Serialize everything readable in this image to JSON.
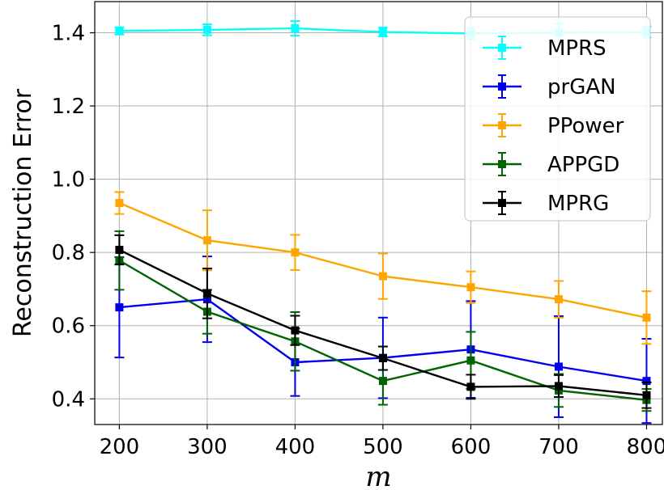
{
  "chart_data": {
    "type": "line",
    "title": "",
    "xlabel": "m",
    "ylabel": "Reconstruction Error",
    "x": [
      200,
      300,
      400,
      500,
      600,
      700,
      800
    ],
    "xlim": [
      172,
      818
    ],
    "ylim": [
      0.33,
      1.485
    ],
    "xticks": [
      "200",
      "300",
      "400",
      "500",
      "600",
      "700",
      "800"
    ],
    "yticks": [
      0.4,
      0.6,
      0.8,
      1.0,
      1.2,
      1.4
    ],
    "ytick_labels": [
      "0.4",
      "0.6",
      "0.8",
      "1.0",
      "1.2",
      "1.4"
    ],
    "grid": true,
    "legend_position": "top-right",
    "series": [
      {
        "name": "MPRS",
        "color": "#00ffff",
        "values": [
          1.405,
          1.408,
          1.412,
          1.402,
          1.398,
          1.4,
          1.402
        ],
        "errors": [
          0.01,
          0.015,
          0.02,
          0.012,
          0.015,
          0.025,
          0.015
        ]
      },
      {
        "name": "prGAN",
        "color": "#0000ee",
        "values": [
          0.65,
          0.672,
          0.5,
          0.512,
          0.535,
          0.488,
          0.449
        ],
        "errors": [
          0.137,
          0.117,
          0.092,
          0.11,
          0.132,
          0.138,
          0.115
        ]
      },
      {
        "name": "PPower",
        "color": "#ffa500",
        "values": [
          0.935,
          0.833,
          0.8,
          0.735,
          0.705,
          0.672,
          0.622
        ],
        "errors": [
          0.03,
          0.082,
          0.048,
          0.062,
          0.043,
          0.05,
          0.072
        ]
      },
      {
        "name": "APPGD",
        "color": "#006400",
        "values": [
          0.778,
          0.638,
          0.557,
          0.449,
          0.505,
          0.423,
          0.397
        ],
        "errors": [
          0.08,
          0.06,
          0.08,
          0.065,
          0.078,
          0.045,
          0.03
        ]
      },
      {
        "name": "MPRG",
        "color": "#000000",
        "values": [
          0.807,
          0.688,
          0.587,
          0.511,
          0.433,
          0.435,
          0.41
        ],
        "errors": [
          0.04,
          0.068,
          0.04,
          0.032,
          0.033,
          0.03,
          0.035
        ]
      }
    ]
  }
}
